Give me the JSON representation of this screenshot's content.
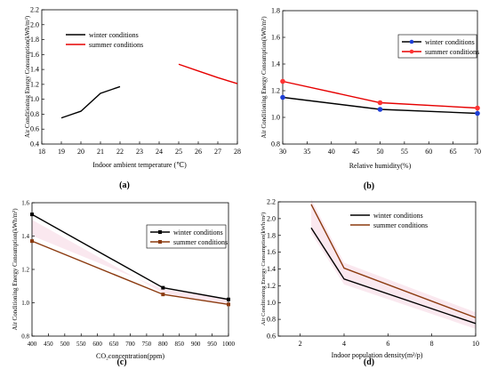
{
  "chart_data": [
    {
      "panel": "(a)",
      "type": "line",
      "xlabel": "Indoor ambient temperature (℃)",
      "ylabel": "Air Conditioning Energy Consumption(kWh/m²)",
      "xlim": [
        18,
        28
      ],
      "ylim": [
        0.4,
        2.2
      ],
      "xticks": [
        18,
        19,
        20,
        21,
        22,
        23,
        24,
        25,
        26,
        27,
        28
      ],
      "yticks": [
        0.4,
        0.6,
        0.8,
        1.0,
        1.2,
        1.4,
        1.6,
        1.8,
        2.0,
        2.2
      ],
      "xtick_labels": [
        "18",
        "19",
        "20",
        "21",
        "22",
        "23",
        "24",
        "25",
        "26",
        "27",
        "28"
      ],
      "ytick_labels": [
        "0.4",
        "0.6",
        "0.8",
        "1.0",
        "1.2",
        "1.4",
        "1.6",
        "1.8",
        "2.0",
        "2.2"
      ],
      "legend_position": "top-left",
      "series": [
        {
          "name": "winter conditions",
          "color": "#000000",
          "marker": "none",
          "x": [
            19,
            20,
            21,
            22
          ],
          "y": [
            0.75,
            0.84,
            1.08,
            1.17
          ]
        },
        {
          "name": "summer conditions",
          "color": "#e60000",
          "marker": "none",
          "x": [
            25,
            26,
            27,
            28
          ],
          "y": [
            1.47,
            1.38,
            1.29,
            1.21
          ]
        }
      ]
    },
    {
      "panel": "(b)",
      "type": "line",
      "xlabel": "Relative humidity(%)",
      "ylabel": "Air Conditioning Energy Consumption(kWh/m²)",
      "xlim": [
        30,
        70
      ],
      "ylim": [
        0.8,
        1.8
      ],
      "xticks": [
        30,
        35,
        40,
        45,
        50,
        55,
        60,
        65,
        70
      ],
      "yticks": [
        0.8,
        1.0,
        1.2,
        1.4,
        1.6,
        1.8
      ],
      "xtick_labels": [
        "30",
        "35",
        "40",
        "45",
        "50",
        "55",
        "60",
        "65",
        "70"
      ],
      "ytick_labels": [
        "0.8",
        "1.0",
        "1.2",
        "1.4",
        "1.6",
        "1.8"
      ],
      "legend_position": "top-right",
      "series": [
        {
          "name": "winter conditions",
          "color": "#000000",
          "marker": "circle",
          "marker_color": "#1f3fd6",
          "x": [
            30,
            50,
            70
          ],
          "y": [
            1.15,
            1.06,
            1.03
          ]
        },
        {
          "name": "summer conditions",
          "color": "#e60000",
          "marker": "circle",
          "marker_color": "#ff3333",
          "x": [
            30,
            50,
            70
          ],
          "y": [
            1.27,
            1.11,
            1.07
          ]
        }
      ]
    },
    {
      "panel": "(c)",
      "type": "line",
      "xlabel": "CO₂concentration(ppm)",
      "ylabel": "Air Conditioning Energy Consumption(kWh/m²)",
      "xlim": [
        400,
        1000
      ],
      "ylim": [
        0.8,
        1.6
      ],
      "xticks": [
        400,
        450,
        500,
        550,
        600,
        650,
        700,
        750,
        800,
        850,
        900,
        950,
        1000
      ],
      "yticks": [
        0.8,
        1.0,
        1.2,
        1.4,
        1.6
      ],
      "xtick_labels": [
        "400",
        "450",
        "500",
        "550",
        "600",
        "650",
        "700",
        "750",
        "800",
        "850",
        "900",
        "950",
        "1000"
      ],
      "ytick_labels": [
        "0.8",
        "1.0",
        "1.2",
        "1.4",
        "1.6"
      ],
      "legend_position": "top-right",
      "series": [
        {
          "name": "winter conditions",
          "color": "#000000",
          "marker": "square",
          "marker_color": "#000000",
          "x": [
            400,
            800,
            1000
          ],
          "y": [
            1.53,
            1.09,
            1.02
          ]
        },
        {
          "name": "summer conditions",
          "color": "#8b3a0f",
          "marker": "square",
          "marker_color": "#8b3a0f",
          "x": [
            400,
            800,
            1000
          ],
          "y": [
            1.37,
            1.05,
            0.99
          ]
        }
      ]
    },
    {
      "panel": "(d)",
      "type": "line",
      "xlabel": "Indoor population density(m²/p)",
      "ylabel": "Air Conditioning Energy Consumption(kWh/m²)",
      "xlim": [
        1,
        10
      ],
      "ylim": [
        0.6,
        2.2
      ],
      "xticks": [
        2,
        4,
        6,
        8,
        10
      ],
      "yticks": [
        0.6,
        0.8,
        1.0,
        1.2,
        1.4,
        1.6,
        1.8,
        2.0,
        2.2
      ],
      "xtick_labels": [
        "2",
        "4",
        "6",
        "8",
        "10"
      ],
      "ytick_labels": [
        "0.6",
        "0.8",
        "1.0",
        "1.2",
        "1.4",
        "1.6",
        "1.8",
        "2.0",
        "2.2"
      ],
      "legend_position": "top-right",
      "series": [
        {
          "name": "winter conditions",
          "color": "#000000",
          "marker": "none",
          "x": [
            2.5,
            4,
            10
          ],
          "y": [
            1.89,
            1.28,
            0.75
          ]
        },
        {
          "name": "summer conditions",
          "color": "#8b3a0f",
          "marker": "none",
          "x": [
            2.5,
            4,
            10
          ],
          "y": [
            2.17,
            1.41,
            0.82
          ]
        }
      ]
    }
  ]
}
